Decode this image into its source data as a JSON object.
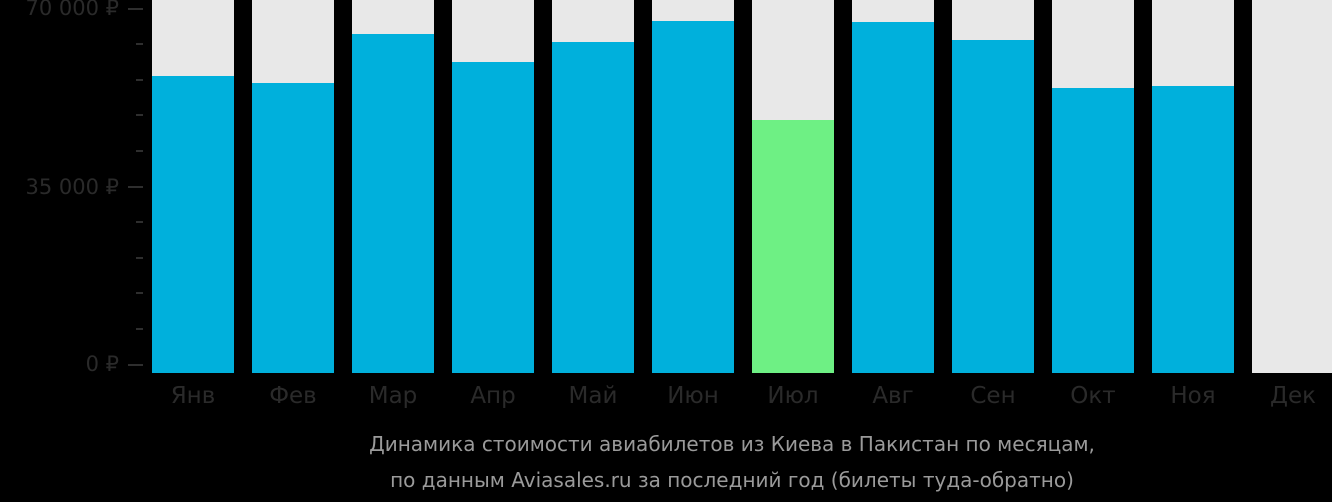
{
  "chart_data": {
    "type": "bar",
    "title": "Динамика стоимости авиабилетов из Киева в Пакистан по месяцам,",
    "subtitle": "по данным Aviasales.ru за последний год (билеты туда-обратно)",
    "xlabel": "",
    "ylabel": "",
    "categories": [
      "Янв",
      "Фев",
      "Мар",
      "Апр",
      "Май",
      "Июн",
      "Июл",
      "Авг",
      "Сен",
      "Окт",
      "Ноя",
      "Дек"
    ],
    "values": [
      56700,
      55400,
      65000,
      59500,
      63400,
      67500,
      48100,
      67300,
      63800,
      54400,
      54800,
      null
    ],
    "ylim": [
      0,
      70000
    ],
    "yticks": [
      0,
      35000,
      70000
    ],
    "ytick_labels": [
      "0 ₽",
      "35 000 ₽",
      "70 000 ₽"
    ],
    "grid": false,
    "legend": null,
    "highlight": {
      "category": "Июл",
      "reason": "cheapest month"
    },
    "colors": {
      "bar": "#00b0dc",
      "highlight": "#6ef084",
      "track": "#e8e8e8",
      "background": "#000000"
    }
  },
  "axis": {
    "y_labels": [
      "70 000 ₽",
      "35 000 ₽",
      "0 ₽"
    ]
  },
  "caption": {
    "line1": "Динамика стоимости авиабилетов из Киева в Пакистан по месяцам,",
    "line2": "по данным Aviasales.ru за последний год (билеты туда-обратно)"
  }
}
